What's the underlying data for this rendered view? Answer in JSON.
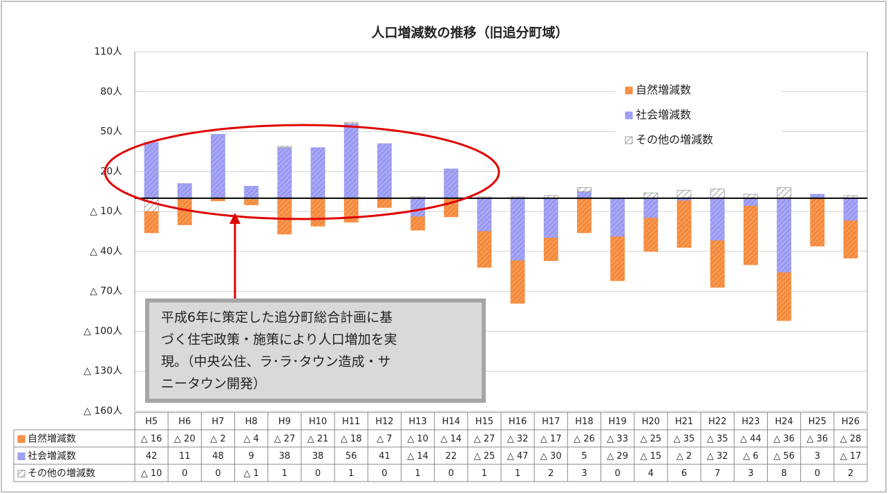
{
  "chart_data": {
    "type": "bar",
    "stacked": true,
    "title": "人口増減数の推移（旧追分町域）",
    "categories": [
      "H5",
      "H6",
      "H7",
      "H8",
      "H9",
      "H10",
      "H11",
      "H12",
      "H13",
      "H14",
      "H15",
      "H16",
      "H17",
      "H18",
      "H19",
      "H20",
      "H21",
      "H22",
      "H23",
      "H24",
      "H25",
      "H26"
    ],
    "series": [
      {
        "name": "自然増減数",
        "color": "#f58a3c",
        "values": [
          -16,
          -20,
          -2,
          -4,
          -27,
          -21,
          -18,
          -7,
          -10,
          -14,
          -27,
          -32,
          -17,
          -26,
          -33,
          -25,
          -35,
          -35,
          -44,
          -36,
          -36,
          -28
        ],
        "value_labels": [
          "△ 16",
          "△ 20",
          "△ 2",
          "△ 4",
          "△ 27",
          "△ 21",
          "△ 18",
          "△ 7",
          "△ 10",
          "△ 14",
          "△ 27",
          "△ 32",
          "△ 17",
          "△ 26",
          "△ 33",
          "△ 25",
          "△ 35",
          "△ 35",
          "△ 44",
          "△ 36",
          "△ 36",
          "△ 28"
        ]
      },
      {
        "name": "社会増減数",
        "color": "#9a9af2",
        "values": [
          42,
          11,
          48,
          9,
          38,
          38,
          56,
          41,
          -14,
          22,
          -25,
          -47,
          -30,
          5,
          -29,
          -15,
          -2,
          -32,
          -6,
          -56,
          3,
          -17
        ],
        "value_labels": [
          "42",
          "11",
          "48",
          "9",
          "38",
          "38",
          "56",
          "41",
          "△ 14",
          "22",
          "△ 25",
          "△ 47",
          "△ 30",
          "5",
          "△ 29",
          "△ 15",
          "△ 2",
          "△ 32",
          "△ 6",
          "△ 56",
          "3",
          "△ 17"
        ]
      },
      {
        "name": "その他の増減数",
        "color": "#9a9a9a",
        "values": [
          -10,
          0,
          0,
          -1,
          1,
          0,
          1,
          0,
          1,
          0,
          1,
          1,
          2,
          3,
          0,
          4,
          6,
          7,
          3,
          8,
          0,
          2
        ],
        "value_labels": [
          "△ 10",
          "0",
          "0",
          "△ 1",
          "1",
          "0",
          "1",
          "0",
          "1",
          "0",
          "1",
          "1",
          "2",
          "3",
          "0",
          "4",
          "6",
          "7",
          "3",
          "8",
          "0",
          "2"
        ]
      }
    ],
    "ylim": [
      -160,
      110
    ],
    "yticks": [
      {
        "value": 110,
        "label": "110人"
      },
      {
        "value": 80,
        "label": "80人"
      },
      {
        "value": 50,
        "label": "50人"
      },
      {
        "value": 20,
        "label": "20人"
      },
      {
        "value": -10,
        "label": "△ 10人"
      },
      {
        "value": -40,
        "label": "△ 40人"
      },
      {
        "value": -70,
        "label": "△ 70人"
      },
      {
        "value": -100,
        "label": "△ 100人"
      },
      {
        "value": -130,
        "label": "△ 130人"
      },
      {
        "value": -160,
        "label": "△ 160人"
      }
    ],
    "grid": true,
    "legend": "upper right",
    "annotation": [
      "平成6年に策定した追分町総合計画に基",
      "づく住宅政策・施策により人口増加を実",
      "現。（中央公住、ラ･ラ･タウン造成・サ",
      "ニータウン開発）"
    ]
  }
}
